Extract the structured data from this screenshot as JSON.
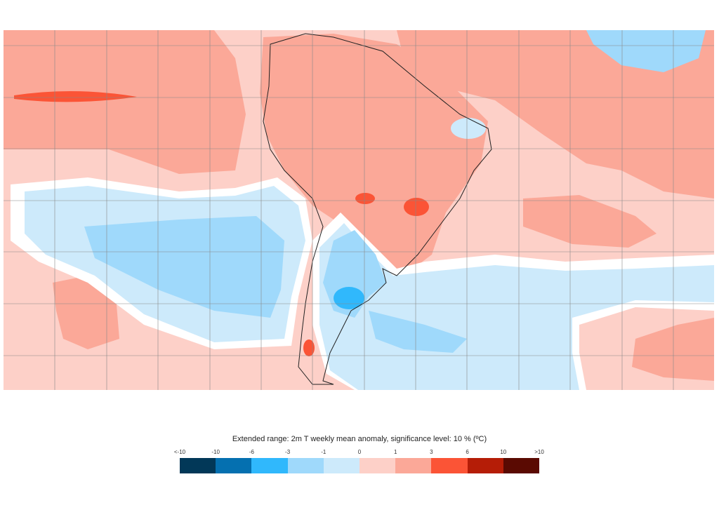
{
  "legend": {
    "title": "Extended range: 2m T weekly mean anomaly, significance level: 10 % (ºC)",
    "labels": [
      "<-10",
      "-10",
      "-6",
      "-3",
      "-1",
      "0",
      "1",
      "3",
      "6",
      "10",
      ">10"
    ],
    "colors": [
      "#023858",
      "#0570b0",
      "#30b8fc",
      "#9fd9fb",
      "#cdeafb",
      "#fdd0c8",
      "#fba898",
      "#fb5436",
      "#b51d07",
      "#5a0a02"
    ]
  }
}
